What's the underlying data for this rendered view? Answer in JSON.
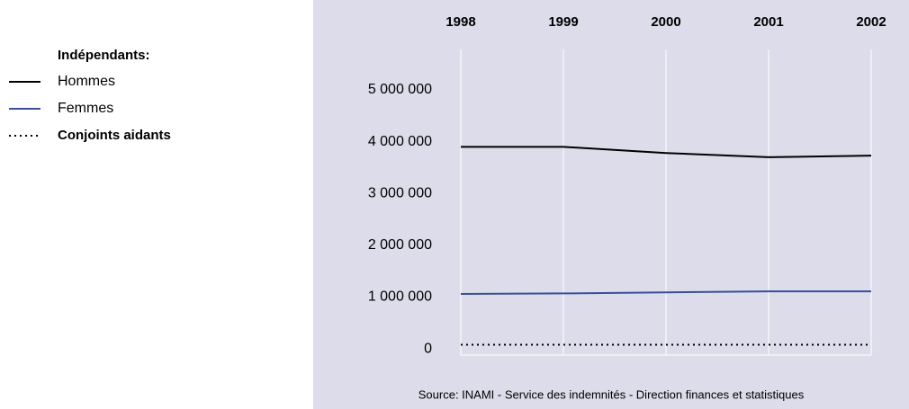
{
  "chart_data": {
    "type": "line",
    "legend_title": "Indépendants:",
    "legend": "top-left",
    "source": "Source: INAMI - Service des indemnités - Direction finances et statistiques",
    "categories": [
      "1998",
      "1999",
      "2000",
      "2001",
      "2002"
    ],
    "series": [
      {
        "name": "Hommes",
        "color": "#000000",
        "dash": "solid",
        "values": [
          3900000,
          3900000,
          3780000,
          3700000,
          3730000
        ]
      },
      {
        "name": "Femmes",
        "color": "#3b4f9a",
        "dash": "solid",
        "values": [
          1060000,
          1070000,
          1090000,
          1110000,
          1110000
        ]
      },
      {
        "name": "Conjoints aidants",
        "color": "#000000",
        "dash": "dotted",
        "values": [
          80000,
          80000,
          80000,
          80000,
          80000
        ]
      }
    ],
    "ylim": [
      -120000,
      5780000
    ],
    "yticks": [
      0,
      {
        "value": 1000000,
        "label": "1 000 000"
      },
      {
        "value": 2000000,
        "label": "2 000 000"
      },
      {
        "value": 3000000,
        "label": "3 000 000"
      },
      {
        "value": 4000000,
        "label": "4 000 000"
      },
      {
        "value": 5000000,
        "label": "5 000 000"
      }
    ],
    "grid": true,
    "background": "#dcdcea"
  }
}
